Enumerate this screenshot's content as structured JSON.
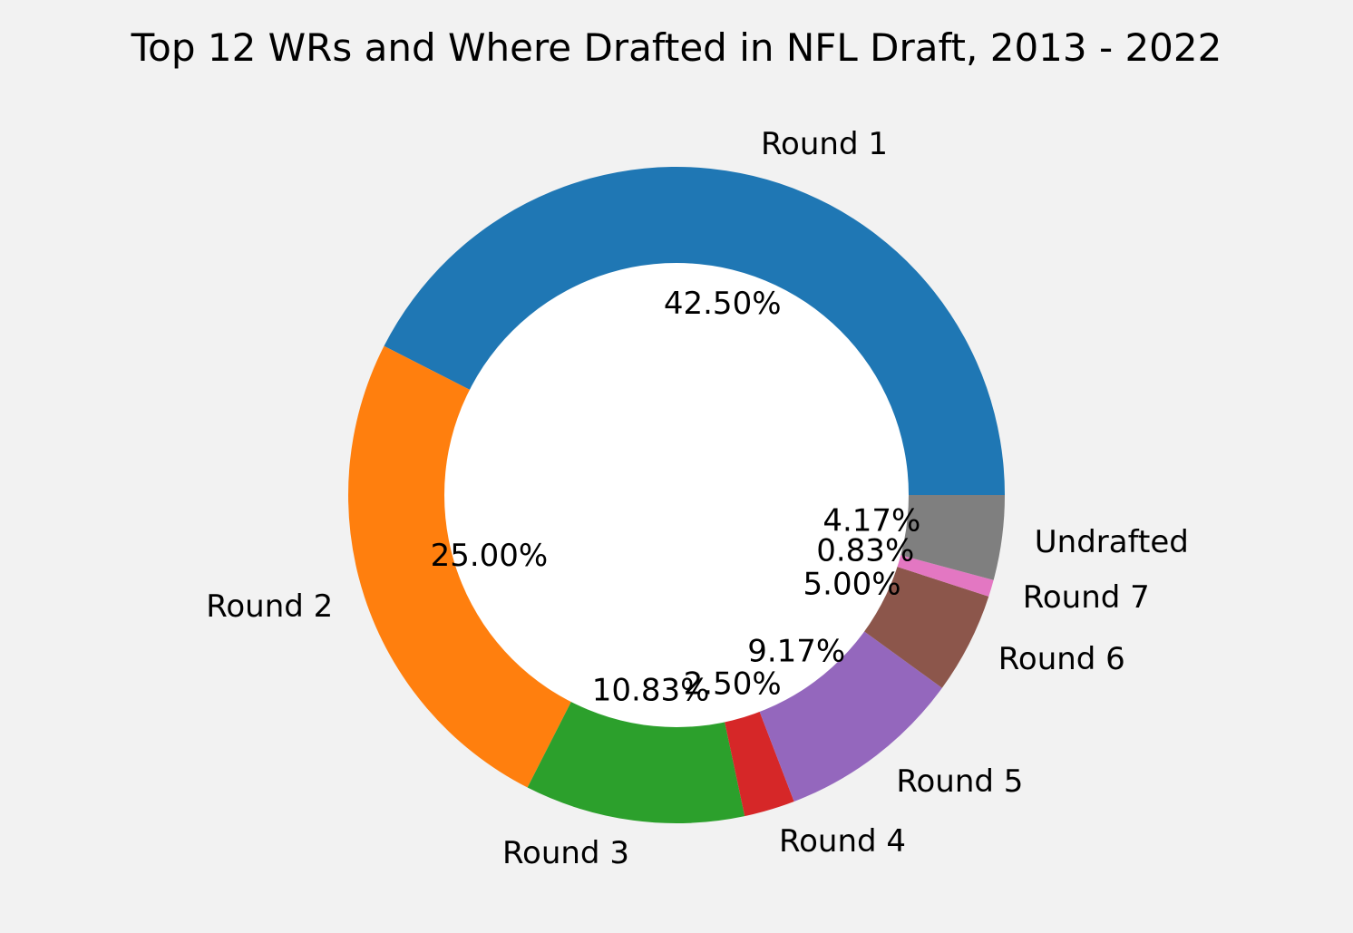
{
  "chart_data": {
    "type": "pie",
    "title": "Top 12 WRs and Where Drafted in NFL Draft, 2013 - 2022",
    "donut": true,
    "start_angle_deg": 0,
    "direction": "counterclockwise",
    "slices": [
      {
        "label": "Round 1",
        "value": 42.5,
        "pct_label": "42.50%",
        "color": "#1f77b4"
      },
      {
        "label": "Round 2",
        "value": 25.0,
        "pct_label": "25.00%",
        "color": "#ff7f0e"
      },
      {
        "label": "Round 3",
        "value": 10.83,
        "pct_label": "10.83%",
        "color": "#2ca02c"
      },
      {
        "label": "Round 4",
        "value": 2.5,
        "pct_label": "2.50%",
        "color": "#d62728"
      },
      {
        "label": "Round 5",
        "value": 9.17,
        "pct_label": "9.17%",
        "color": "#9467bd"
      },
      {
        "label": "Round 6",
        "value": 5.0,
        "pct_label": "5.00%",
        "color": "#8c564b"
      },
      {
        "label": "Round 7",
        "value": 0.83,
        "pct_label": "0.83%",
        "color": "#e377c2"
      },
      {
        "label": "Undrafted",
        "value": 4.17,
        "pct_label": "4.17%",
        "color": "#7f7f7f"
      }
    ],
    "background_color": "#f2f2f2",
    "hole_color": "#ffffff"
  }
}
